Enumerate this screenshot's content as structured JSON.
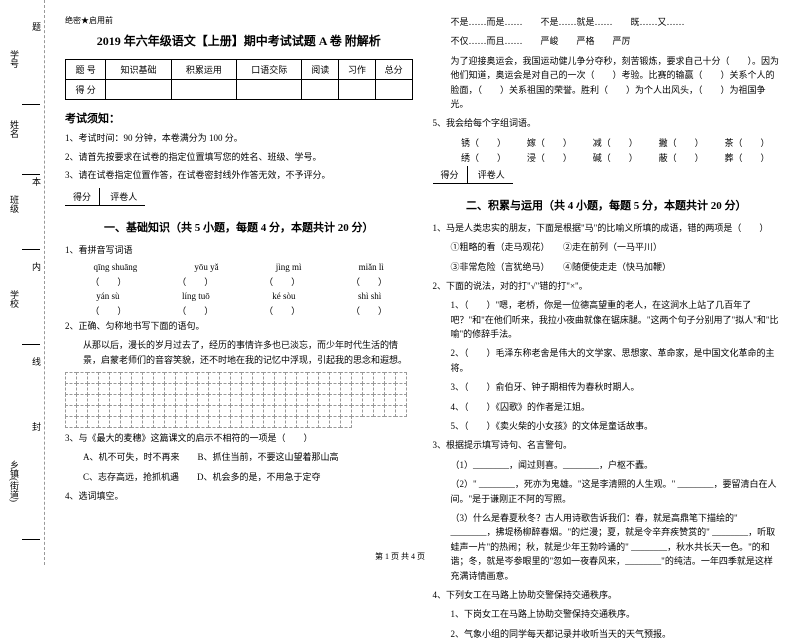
{
  "sidebar": {
    "labels": [
      "学号",
      "姓名",
      "班级",
      "学校",
      "乡镇(街道)"
    ],
    "binding_text": "密封线内不许答题",
    "vert_chars": [
      "题",
      "本",
      "内",
      "线",
      "封"
    ]
  },
  "header": {
    "confidential": "绝密★启用前",
    "title": "2019 年六年级语文【上册】期中考试试题 A 卷 附解析"
  },
  "score_table": {
    "row1": [
      "题 号",
      "知识基础",
      "积累运用",
      "口语交际",
      "阅读",
      "习作",
      "总分"
    ],
    "row2": [
      "得 分",
      "",
      "",
      "",
      "",
      "",
      ""
    ]
  },
  "notice": {
    "title": "考试须知：",
    "items": [
      "1、考试时间：90 分钟，本卷满分为 100 分。",
      "2、请首先按要求在试卷的指定位置填写您的姓名、班级、学号。",
      "3、请在试卷指定位置作答，在试卷密封线外作答无效，不予评分。"
    ]
  },
  "scorer": {
    "label1": "得分",
    "label2": "评卷人"
  },
  "section1": {
    "title": "一、基础知识（共 5 小题，每题 4 分，本题共计 20 分）",
    "q1": "1、看拼音写词语",
    "pinyin_r1": [
      "qīng shuāng",
      "yōu yǎ",
      "jìng mì",
      "miǎn lì"
    ],
    "pinyin_r2": [
      "yán sù",
      "líng tuō",
      "ké sòu",
      "shì shì"
    ],
    "q2": "2、正确、匀称地书写下面的语句。",
    "q2_text1": "从那以后，漫长的岁月过去了，经历的事情许多也已淡忘，而少年时代生活的情景，启蒙老师们的音容笑貌，还不时地在我的记忆中浮现，引起我的思念和遐想。",
    "q3": "3、与《最大的麦穗》这篇课文的启示不相符的一项是（　　）",
    "q3_opts": [
      "A、机不可失，时不再来　　B、抓住当前，不要这山望着那山高",
      "C、志存高远，抢抓机遇　　D、机会多的是，不用急于定夺"
    ],
    "q4": "4、选词填空。"
  },
  "right_col": {
    "r1": "不是……而是……　　不是……就是……　　既……又……",
    "r2": "不仅……而且……　　严峻　　严格　　严厉",
    "r3": "为了迎接奥运会，我国运动健儿争分夺秒，刻苦锻炼，要求自己十分（　　）。因为他们知道，奥运会是对自己的一次（　　）考验。比赛的输赢（　　）关系个人的脸面，（　　）关系祖国的荣誉。胜利（　　）为个人出风头，（　　）为祖国争光。",
    "q5": "5、我会给每个字组词语。",
    "q5_r1": [
      "锈（　　）",
      "嫁（　　）",
      "减（　　）",
      "撇（　　）",
      "茶（　　）"
    ],
    "q5_r2": [
      "绣（　　）",
      "浸（　　）",
      "碱（　　）",
      "蔽（　　）",
      "葬（　　）"
    ],
    "section2_title": "二、积累与运用（共 4 小题，每题 5 分，本题共计 20 分）",
    "s2_q1": "1、马是人类忠实的朋友，下面是根据\"马\"的比喻义所填的成语，错的两项是（　　）",
    "s2_q1_opts": [
      "①粗略的看（走马观花）　　②走在前列（一马平川）",
      "③非常危险（言犹绝马）　　④随便使走走（快马加鞭）"
    ],
    "s2_q2": "2、下面的说法，对的打\"√\"错的打\"×\"。",
    "s2_q2_items": [
      "1、（　　）\"嗯，老桥，你是一位德高望重的老人，在这涧水上站了几百年了吧？\"和\"在他们听来，我拉小夜曲就像在锯床腿。\"这两个句子分别用了\"拟人\"和\"比喻\"的修辞手法。",
      "2、（　　）毛泽东称老舍是伟大的文学家、思想家、革命家，是中国文化革命的主将。",
      "3、（　　）俞伯牙、钟子期相传为春秋时期人。",
      "4、（　　）《囚歌》的作者是江姐。",
      "5、（　　）《卖火柴的小女孩》的文体是童话故事。"
    ],
    "s2_q3": "3、根据提示填写诗句、名言警句。",
    "s2_q3_items": [
      "（1）________，闻过则喜。________，户枢不蠹。",
      "（2）\" ________，死亦为鬼雄。\"这是李清照的人生观。\" ________，要留清白在人间。\"是于谦刚正不阿的写照。",
      "（3）什么是春夏秋冬？古人用诗歌告诉我们：春，就是高鼎笔下描绘的\" ________，拂堤杨柳醉春烟。\"的烂漫；夏，就是令辛弃疾赞赏的\" ________，听取蛙声一片\"的热闹；秋，就是少年王勃吟诵的\" ________，秋水共长天一色。\"的和谐；冬，就是岑参眼里的\"忽如一夜春风来，________\"的纯洁。一年四季就是这样充满诗情画意。"
    ],
    "s2_q4": "4、下列女工在马路上协助交警保持交通秩序。",
    "s2_q4_items": [
      "1、下岗女工在马路上协助交警保持交通秩序。",
      "2、气象小组的同学每天都记录并收听当天的天气预报。"
    ]
  },
  "footer": "第 1 页 共 4 页"
}
